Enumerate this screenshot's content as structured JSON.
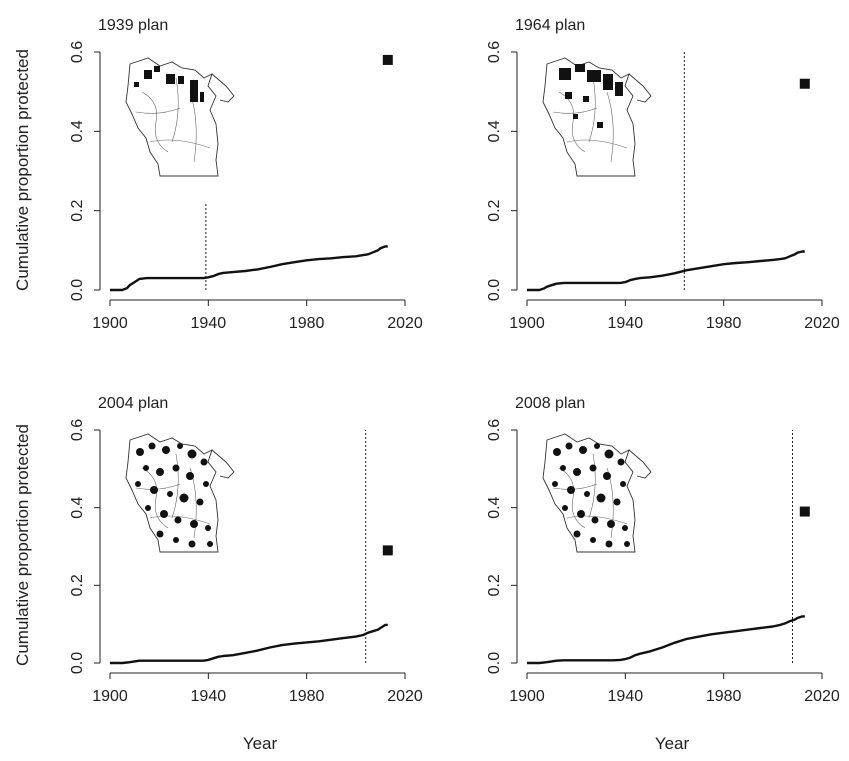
{
  "figure": {
    "shared_ylabel": "Cumulative proportion protected",
    "shared_xlabel": "Year"
  },
  "chart_data": [
    {
      "type": "line",
      "title": "1939 plan",
      "xlabel": "",
      "ylabel": "Cumulative proportion protected",
      "xlim": [
        1900,
        2020
      ],
      "ylim": [
        0,
        0.6
      ],
      "xticks": [
        1900,
        1940,
        1980,
        2020
      ],
      "xtick_labels": [
        "1900",
        "1940",
        "1980",
        "2020"
      ],
      "yticks": [
        0,
        0.2,
        0.4,
        0.6
      ],
      "ytick_labels": [
        "0.0",
        "0.2",
        "0.4",
        "0.6"
      ],
      "grid": false,
      "plan_year": 1939,
      "plan_point": {
        "x": 2013,
        "y": 0.58
      },
      "inset_map": "wisconsin-map",
      "series": [
        {
          "x": [
            1900,
            1905,
            1907,
            1908,
            1910,
            1912,
            1915,
            1920,
            1925,
            1930,
            1935,
            1938,
            1940,
            1942,
            1944,
            1946,
            1950,
            1955,
            1960,
            1965,
            1970,
            1975,
            1980,
            1985,
            1990,
            1995,
            2000,
            2003,
            2005,
            2007,
            2009,
            2010,
            2012,
            2013
          ],
          "y": [
            0.0,
            0.0,
            0.005,
            0.012,
            0.02,
            0.028,
            0.03,
            0.03,
            0.03,
            0.03,
            0.03,
            0.03,
            0.032,
            0.035,
            0.04,
            0.043,
            0.045,
            0.048,
            0.052,
            0.058,
            0.065,
            0.07,
            0.075,
            0.078,
            0.08,
            0.083,
            0.085,
            0.088,
            0.09,
            0.095,
            0.1,
            0.105,
            0.11,
            0.11
          ]
        }
      ]
    },
    {
      "type": "line",
      "title": "1964 plan",
      "xlabel": "",
      "ylabel": "",
      "xlim": [
        1900,
        2020
      ],
      "ylim": [
        0,
        0.6
      ],
      "xticks": [
        1900,
        1940,
        1980,
        2020
      ],
      "xtick_labels": [
        "1900",
        "1940",
        "1980",
        "2020"
      ],
      "yticks": [
        0,
        0.2,
        0.4,
        0.6
      ],
      "ytick_labels": [
        "0.0",
        "0.2",
        "0.4",
        "0.6"
      ],
      "grid": false,
      "plan_year": 1964,
      "plan_point": {
        "x": 2013,
        "y": 0.52
      },
      "inset_map": "wisconsin-map",
      "series": [
        {
          "x": [
            1900,
            1905,
            1907,
            1908,
            1910,
            1912,
            1915,
            1920,
            1925,
            1930,
            1935,
            1938,
            1940,
            1942,
            1944,
            1946,
            1950,
            1955,
            1960,
            1965,
            1970,
            1975,
            1980,
            1985,
            1990,
            1995,
            2000,
            2003,
            2005,
            2007,
            2009,
            2010,
            2012,
            2013
          ],
          "y": [
            0.0,
            0.0,
            0.004,
            0.008,
            0.012,
            0.016,
            0.018,
            0.018,
            0.018,
            0.018,
            0.018,
            0.018,
            0.02,
            0.025,
            0.028,
            0.03,
            0.032,
            0.036,
            0.042,
            0.05,
            0.055,
            0.06,
            0.065,
            0.068,
            0.07,
            0.073,
            0.076,
            0.078,
            0.08,
            0.085,
            0.09,
            0.094,
            0.097,
            0.097
          ]
        }
      ]
    },
    {
      "type": "line",
      "title": "2004 plan",
      "xlabel": "Year",
      "ylabel": "Cumulative proportion protected",
      "xlim": [
        1900,
        2020
      ],
      "ylim": [
        0,
        0.6
      ],
      "xticks": [
        1900,
        1940,
        1980,
        2020
      ],
      "xtick_labels": [
        "1900",
        "1940",
        "1980",
        "2020"
      ],
      "yticks": [
        0,
        0.2,
        0.4,
        0.6
      ],
      "ytick_labels": [
        "0.0",
        "0.2",
        "0.4",
        "0.6"
      ],
      "grid": false,
      "plan_year": 2004,
      "plan_point": {
        "x": 2013,
        "y": 0.29
      },
      "inset_map": "wisconsin-map",
      "series": [
        {
          "x": [
            1900,
            1905,
            1908,
            1910,
            1912,
            1915,
            1920,
            1925,
            1930,
            1935,
            1938,
            1940,
            1942,
            1944,
            1946,
            1950,
            1955,
            1960,
            1965,
            1970,
            1975,
            1980,
            1985,
            1990,
            1995,
            2000,
            2003,
            2005,
            2007,
            2009,
            2010,
            2012,
            2013
          ],
          "y": [
            0.0,
            0.0,
            0.002,
            0.004,
            0.006,
            0.006,
            0.006,
            0.006,
            0.006,
            0.006,
            0.006,
            0.008,
            0.012,
            0.016,
            0.018,
            0.02,
            0.026,
            0.032,
            0.04,
            0.046,
            0.05,
            0.053,
            0.056,
            0.06,
            0.064,
            0.068,
            0.072,
            0.078,
            0.082,
            0.086,
            0.09,
            0.098,
            0.098
          ]
        }
      ]
    },
    {
      "type": "line",
      "title": "2008 plan",
      "xlabel": "Year",
      "ylabel": "",
      "xlim": [
        1900,
        2020
      ],
      "ylim": [
        0,
        0.6
      ],
      "xticks": [
        1900,
        1940,
        1980,
        2020
      ],
      "xtick_labels": [
        "1900",
        "1940",
        "1980",
        "2020"
      ],
      "yticks": [
        0,
        0.2,
        0.4,
        0.6
      ],
      "ytick_labels": [
        "0.0",
        "0.2",
        "0.4",
        "0.6"
      ],
      "grid": false,
      "plan_year": 2008,
      "plan_point": {
        "x": 2013,
        "y": 0.39
      },
      "inset_map": "wisconsin-map",
      "series": [
        {
          "x": [
            1900,
            1905,
            1908,
            1910,
            1912,
            1915,
            1920,
            1925,
            1930,
            1935,
            1938,
            1940,
            1942,
            1944,
            1946,
            1950,
            1955,
            1960,
            1965,
            1970,
            1975,
            1980,
            1985,
            1990,
            1995,
            2000,
            2003,
            2005,
            2007,
            2009,
            2010,
            2012,
            2013
          ],
          "y": [
            0.0,
            0.0,
            0.002,
            0.004,
            0.006,
            0.007,
            0.007,
            0.007,
            0.007,
            0.007,
            0.008,
            0.01,
            0.014,
            0.02,
            0.024,
            0.03,
            0.04,
            0.052,
            0.062,
            0.068,
            0.074,
            0.078,
            0.082,
            0.086,
            0.09,
            0.094,
            0.098,
            0.102,
            0.108,
            0.112,
            0.116,
            0.12,
            0.12
          ]
        }
      ]
    }
  ]
}
